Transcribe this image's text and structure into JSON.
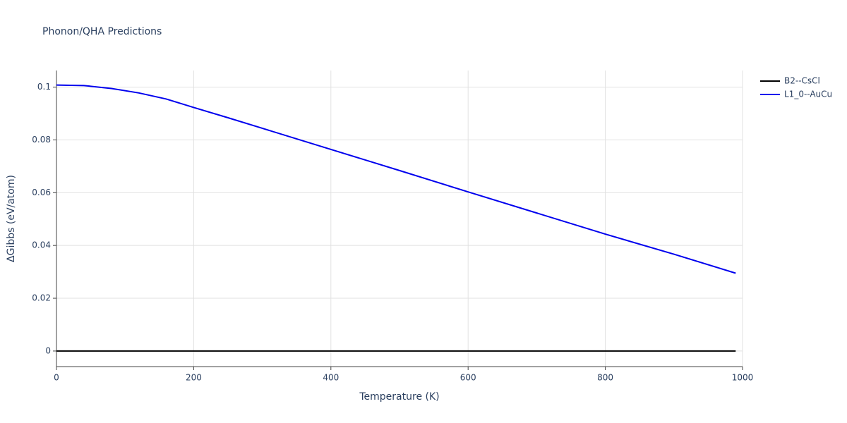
{
  "chart_data": {
    "type": "line",
    "title": "Phonon/QHA Predictions",
    "x_label": "Temperature (K)",
    "y_label": "ΔGibbs (eV/atom)",
    "xlim": [
      0,
      1000
    ],
    "xticks": [
      0,
      200,
      400,
      600,
      800,
      1000
    ],
    "ylim": [
      -0.0059,
      0.1063
    ],
    "yticks": [
      0,
      0.02,
      0.04,
      0.06,
      0.08,
      0.1
    ],
    "grid": true,
    "legend": "outside-right",
    "series": [
      {
        "name": "B2--CsCl",
        "color": "#000000",
        "x": [
          0,
          990
        ],
        "values": [
          0,
          0
        ]
      },
      {
        "name": "L1_0--AuCu",
        "color": "#0000ee",
        "x": [
          0,
          40,
          80,
          120,
          160,
          200,
          250,
          300,
          400,
          500,
          600,
          700,
          800,
          900,
          990
        ],
        "values": [
          0.1008,
          0.1006,
          0.0995,
          0.0978,
          0.0955,
          0.0923,
          0.0884,
          0.0844,
          0.0764,
          0.0684,
          0.0603,
          0.0523,
          0.0443,
          0.0367,
          0.0295
        ]
      }
    ]
  }
}
